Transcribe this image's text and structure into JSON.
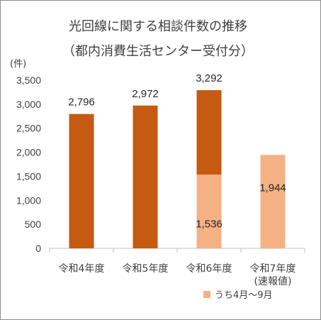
{
  "chart_data": {
    "type": "bar",
    "title": "光回線に関する相談件数の推移",
    "subtitle": "（都内消費生活センター受付分）",
    "unit_label": "(件)",
    "categories": [
      "令和4年度",
      "令和5年度",
      "令和6年度",
      "令和7年度"
    ],
    "category_sublabels": [
      "",
      "",
      "",
      "(速報値)"
    ],
    "series": [
      {
        "name": "",
        "values": [
          2796,
          2972,
          3292,
          null
        ],
        "color": "#c55a11"
      },
      {
        "name": "うち4月～9月",
        "values": [
          null,
          null,
          1536,
          1944
        ],
        "color": "#f4b183"
      }
    ],
    "total_labels": [
      "2,796",
      "2,972",
      "3,292",
      ""
    ],
    "partial_labels": [
      "",
      "",
      "1,536",
      "1,944"
    ],
    "yticks": [
      0,
      500,
      1000,
      1500,
      2000,
      2500,
      3000,
      3500
    ],
    "ytick_labels": [
      "0",
      "500",
      "1,000",
      "1,500",
      "2,000",
      "2,500",
      "3,000",
      "3,500"
    ],
    "ylim": [
      0,
      3500
    ],
    "grid": false,
    "legend_position": "bottom-right",
    "legend_label": "うち4月～9月"
  }
}
